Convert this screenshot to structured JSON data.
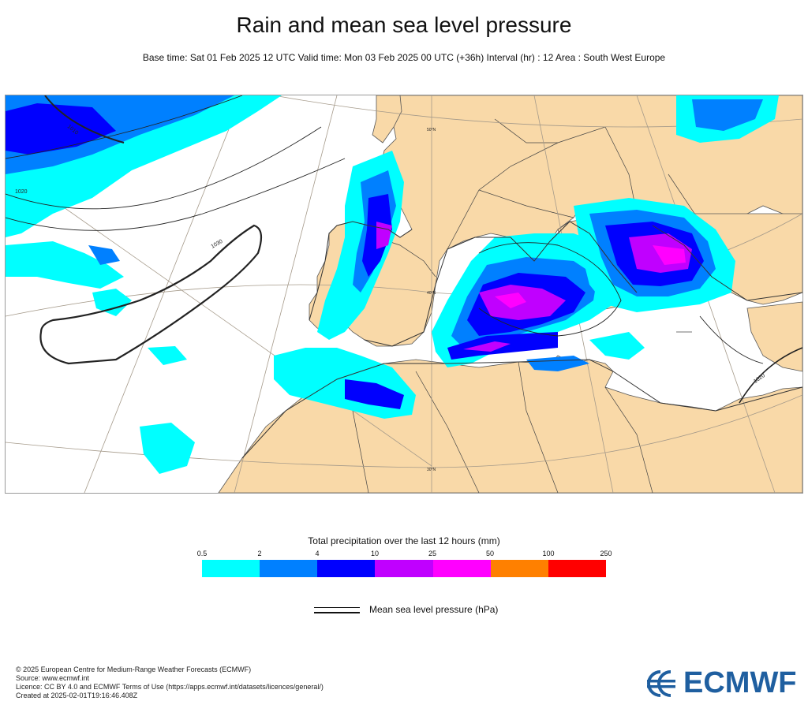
{
  "title": "Rain and mean sea level pressure",
  "subtitle": "Base time: Sat 01 Feb 2025 12 UTC Valid time: Mon 03 Feb 2025 00 UTC (+36h) Interval (hr) : 12 Area : South West Europe",
  "map": {
    "labels": {
      "lat_50": "50°N",
      "lat_40": "40°N",
      "lat_30": "30°N",
      "isobar_1010": "1010",
      "isobar_1020": "1020",
      "isobar_1030": "1030",
      "isobar_1020_east": "1020"
    },
    "colors": {
      "land": "#f9d9a8",
      "sea": "#ffffff",
      "border": "#333333",
      "grid": "#a59a8a",
      "isobar": "#222222"
    }
  },
  "legend": {
    "title": "Total precipitation over the last 12 hours (mm)",
    "ticks": [
      "0.5",
      "2",
      "4",
      "10",
      "25",
      "50",
      "100",
      "250"
    ],
    "colors": [
      "#00ffff",
      "#0080ff",
      "#0000fe",
      "#c000ff",
      "#ff00ff",
      "#ff8000",
      "#ff0000"
    ],
    "msl_label": "Mean sea level pressure (hPa)"
  },
  "credits": {
    "line1": "© 2025 European Centre for Medium-Range Weather Forecasts (ECMWF)",
    "line2": "Source: www.ecmwf.int",
    "line3": "Licence: CC BY 4.0 and ECMWF Terms of Use (https://apps.ecmwf.int/datasets/licences/general/)",
    "line4": "Created at 2025-02-01T19:16:46.408Z"
  },
  "logo": {
    "text": "ECMWF",
    "color": "#1f5fa0"
  }
}
